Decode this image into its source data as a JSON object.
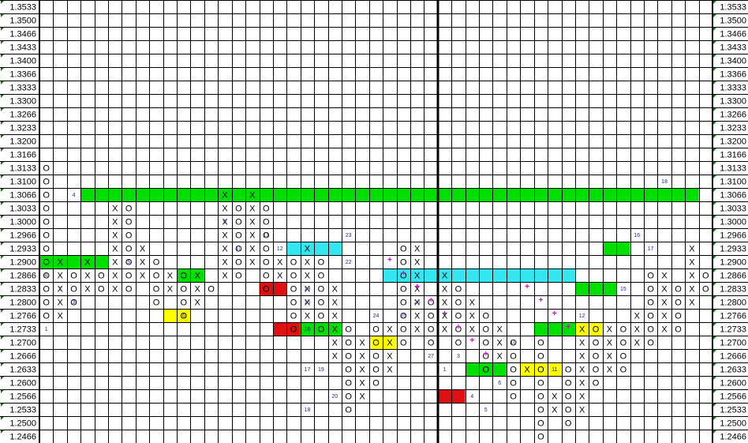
{
  "chart_data": {
    "type": "point-and-figure",
    "y_levels": [
      "1.3533",
      "1.3500",
      "1.3466",
      "1.3433",
      "1.3400",
      "1.3366",
      "1.3333",
      "1.3300",
      "1.3266",
      "1.3233",
      "1.3200",
      "1.3166",
      "1.3133",
      "1.3100",
      "1.3066",
      "1.3033",
      "1.3000",
      "1.2966",
      "1.2933",
      "1.2900",
      "1.2866",
      "1.2833",
      "1.2800",
      "1.2766",
      "1.2733",
      "1.2700",
      "1.2666",
      "1.2633",
      "1.2600",
      "1.2566",
      "1.2533",
      "1.2500",
      "1.2466"
    ],
    "column_count": 49,
    "colors": {
      "green": "#00e000",
      "cyan": "#33e6f0",
      "red": "#e01010",
      "yellow": "#ffff00",
      "grid": "#000000",
      "annot": "#1f2a8c",
      "plus": "#d000d0"
    },
    "highlights": [
      {
        "row": "1.3066",
        "c0": 3,
        "c1": 47,
        "color": "green"
      },
      {
        "row": "1.2933",
        "c0": 18,
        "c1": 21,
        "color": "cyan"
      },
      {
        "row": "1.2900",
        "c0": 0,
        "c1": 4,
        "color": "green"
      },
      {
        "row": "1.2866",
        "c0": 10,
        "c1": 11,
        "color": "green"
      },
      {
        "row": "1.2866",
        "c0": 25,
        "c1": 38,
        "color": "cyan"
      },
      {
        "row": "1.2833",
        "c0": 16,
        "c1": 17,
        "color": "red"
      },
      {
        "row": "1.2766",
        "c0": 9,
        "c1": 10,
        "color": "yellow"
      },
      {
        "row": "1.2733",
        "c0": 17,
        "c1": 18,
        "color": "red"
      },
      {
        "row": "1.2733",
        "c0": 19,
        "c1": 21,
        "color": "green"
      },
      {
        "row": "1.2733",
        "c0": 36,
        "c1": 38,
        "color": "green"
      },
      {
        "row": "1.2733",
        "c0": 39,
        "c1": 40,
        "color": "yellow"
      },
      {
        "row": "1.2700",
        "c0": 24,
        "c1": 25,
        "color": "yellow"
      },
      {
        "row": "1.2633",
        "c0": 31,
        "c1": 33,
        "color": "green"
      },
      {
        "row": "1.2633",
        "c0": 35,
        "c1": 37,
        "color": "yellow"
      },
      {
        "row": "1.2566",
        "c0": 29,
        "c1": 30,
        "color": "red"
      },
      {
        "row": "1.2933",
        "c0": 41,
        "c1": 42,
        "color": "green"
      },
      {
        "row": "1.2833",
        "c0": 39,
        "c1": 41,
        "color": "green"
      }
    ],
    "columns": [
      {
        "col": 0,
        "type": "O",
        "top": "1.3133",
        "bottom": "1.2766"
      },
      {
        "col": 1,
        "type": "X",
        "top": "1.2900",
        "bottom": "1.2766"
      },
      {
        "col": 2,
        "type": "O",
        "top": "1.2866",
        "bottom": "1.2800"
      },
      {
        "col": 3,
        "type": "X",
        "top": "1.2900",
        "bottom": "1.2833"
      },
      {
        "col": 4,
        "type": "O",
        "top": "1.2866",
        "bottom": "1.2833"
      },
      {
        "col": 5,
        "type": "X",
        "top": "1.3033",
        "bottom": "1.2833"
      },
      {
        "col": 6,
        "type": "O",
        "top": "1.3033",
        "bottom": "1.2833"
      },
      {
        "col": 7,
        "type": "X",
        "top": "1.2933",
        "bottom": "1.2866"
      },
      {
        "col": 8,
        "type": "O",
        "top": "1.2900",
        "bottom": "1.2800"
      },
      {
        "col": 9,
        "type": "X",
        "top": "1.2866",
        "bottom": "1.2833"
      },
      {
        "col": 10,
        "type": "O",
        "top": "1.2866",
        "bottom": "1.2766"
      },
      {
        "col": 11,
        "type": "X",
        "top": "1.2866",
        "bottom": "1.2800"
      },
      {
        "col": 12,
        "type": "O",
        "top": "1.2833",
        "bottom": "1.2833"
      },
      {
        "col": 13,
        "type": "X",
        "top": "1.3066",
        "bottom": "1.2866"
      },
      {
        "col": 14,
        "type": "O",
        "top": "1.3033",
        "bottom": "1.2866"
      },
      {
        "col": 15,
        "type": "X",
        "top": "1.3066",
        "bottom": "1.2900"
      },
      {
        "col": 16,
        "type": "O",
        "top": "1.3033",
        "bottom": "1.2833"
      },
      {
        "col": 17,
        "type": "X",
        "top": "1.2900",
        "bottom": "1.2866"
      },
      {
        "col": 18,
        "type": "O",
        "top": "1.2900",
        "bottom": "1.2733"
      },
      {
        "col": 19,
        "type": "X",
        "top": "1.2933",
        "bottom": "1.2766"
      },
      {
        "col": 20,
        "type": "O",
        "top": "1.2900",
        "bottom": "1.2733"
      },
      {
        "col": 21,
        "type": "X",
        "top": "1.2833",
        "bottom": "1.2666"
      },
      {
        "col": 22,
        "type": "O",
        "top": "1.2733",
        "bottom": "1.2533"
      },
      {
        "col": 23,
        "type": "X",
        "top": "1.2700",
        "bottom": "1.2566"
      },
      {
        "col": 24,
        "type": "O",
        "top": "1.2733",
        "bottom": "1.2600"
      },
      {
        "col": 25,
        "type": "X",
        "top": "1.2733",
        "bottom": "1.2633"
      },
      {
        "col": 26,
        "type": "O",
        "top": "1.2933",
        "bottom": "1.2700"
      },
      {
        "col": 27,
        "type": "X",
        "top": "1.2933",
        "bottom": "1.2733"
      },
      {
        "col": 28,
        "type": "O",
        "top": "1.2800",
        "bottom": "1.2700"
      },
      {
        "col": 29,
        "type": "X",
        "top": "1.2866",
        "bottom": "1.2733"
      },
      {
        "col": 30,
        "type": "O",
        "top": "1.2833",
        "bottom": "1.2700"
      },
      {
        "col": 31,
        "type": "X",
        "top": "1.2800",
        "bottom": "1.2733"
      },
      {
        "col": 32,
        "type": "O",
        "top": "1.2766",
        "bottom": "1.2633"
      },
      {
        "col": 33,
        "type": "X",
        "top": "1.2733",
        "bottom": "1.2666"
      },
      {
        "col": 34,
        "type": "O",
        "top": "1.2700",
        "bottom": "1.2566"
      },
      {
        "col": 35,
        "type": "X",
        "top": "1.2633",
        "bottom": "1.2633"
      },
      {
        "col": 36,
        "type": "O",
        "top": "1.2700",
        "bottom": "1.2466"
      },
      {
        "col": 37,
        "type": "X",
        "top": "1.2566",
        "bottom": "1.2533"
      },
      {
        "col": 38,
        "type": "O",
        "top": "1.2633",
        "bottom": "1.2500"
      },
      {
        "col": 39,
        "type": "X",
        "top": "1.2733",
        "bottom": "1.2533"
      },
      {
        "col": 40,
        "type": "O",
        "top": "1.2733",
        "bottom": "1.2600"
      },
      {
        "col": 41,
        "type": "X",
        "top": "1.2733",
        "bottom": "1.2633"
      },
      {
        "col": 42,
        "type": "O",
        "top": "1.2733",
        "bottom": "1.2633"
      },
      {
        "col": 43,
        "type": "X",
        "top": "1.2766",
        "bottom": "1.2700"
      },
      {
        "col": 44,
        "type": "O",
        "top": "1.2866",
        "bottom": "1.2700"
      },
      {
        "col": 45,
        "type": "X",
        "top": "1.2866",
        "bottom": "1.2733"
      },
      {
        "col": 46,
        "type": "O",
        "top": "1.2833",
        "bottom": "1.2733"
      },
      {
        "col": 47,
        "type": "X",
        "top": "1.2933",
        "bottom": "1.2800"
      },
      {
        "col": 48,
        "type": "O",
        "top": "1.2866",
        "bottom": "1.2833"
      }
    ],
    "annotations": [
      {
        "col": 0,
        "row": "1.2866",
        "text": "30"
      },
      {
        "col": 1,
        "row": "1.2833",
        "text": "2"
      },
      {
        "col": 2,
        "row": "1.2800",
        "text": "3"
      },
      {
        "col": 2,
        "row": "1.3066",
        "text": "4"
      },
      {
        "col": 6,
        "row": "1.2900",
        "text": "5"
      },
      {
        "col": 10,
        "row": "1.2766",
        "text": "6"
      },
      {
        "col": 0,
        "row": "1.2733",
        "text": "1"
      },
      {
        "col": 13,
        "row": "1.3000",
        "text": "9"
      },
      {
        "col": 14,
        "row": "1.2933",
        "text": "10"
      },
      {
        "col": 16,
        "row": "1.2966",
        "text": "11"
      },
      {
        "col": 17,
        "row": "1.2933",
        "text": "12"
      },
      {
        "col": 19,
        "row": "1.2833",
        "text": "13"
      },
      {
        "col": 19,
        "row": "1.2800",
        "text": "15"
      },
      {
        "col": 19,
        "row": "1.2733",
        "text": "16"
      },
      {
        "col": 19,
        "row": "1.2633",
        "text": "17"
      },
      {
        "col": 19,
        "row": "1.2533",
        "text": "18"
      },
      {
        "col": 20,
        "row": "1.2633",
        "text": "19"
      },
      {
        "col": 21,
        "row": "1.2566",
        "text": "20"
      },
      {
        "col": 22,
        "row": "1.2900",
        "text": "22"
      },
      {
        "col": 22,
        "row": "1.2966",
        "text": "23"
      },
      {
        "col": 24,
        "row": "1.2766",
        "text": "24"
      },
      {
        "col": 26,
        "row": "1.2766",
        "text": "25"
      },
      {
        "col": 27,
        "row": "1.2800",
        "text": "26"
      },
      {
        "col": 28,
        "row": "1.2666",
        "text": "27"
      },
      {
        "col": 29,
        "row": "1.2633",
        "text": "1"
      },
      {
        "col": 30,
        "row": "1.2666",
        "text": "3"
      },
      {
        "col": 31,
        "row": "1.2566",
        "text": "4"
      },
      {
        "col": 32,
        "row": "1.2533",
        "text": "5"
      },
      {
        "col": 33,
        "row": "1.2600",
        "text": "6"
      },
      {
        "col": 34,
        "row": "1.2700",
        "text": "10"
      },
      {
        "col": 37,
        "row": "1.2633",
        "text": "11"
      },
      {
        "col": 39,
        "row": "1.2766",
        "text": "12"
      },
      {
        "col": 42,
        "row": "1.2833",
        "text": "15"
      },
      {
        "col": 43,
        "row": "1.2966",
        "text": "16"
      },
      {
        "col": 44,
        "row": "1.2933",
        "text": "17"
      },
      {
        "col": 45,
        "row": "1.3100",
        "text": "18"
      }
    ],
    "plus_marks": [
      {
        "col": 25,
        "row": "1.2900"
      },
      {
        "col": 26,
        "row": "1.2866"
      },
      {
        "col": 27,
        "row": "1.2833"
      },
      {
        "col": 28,
        "row": "1.2800"
      },
      {
        "col": 29,
        "row": "1.2766"
      },
      {
        "col": 30,
        "row": "1.2733"
      },
      {
        "col": 31,
        "row": "1.2700"
      },
      {
        "col": 32,
        "row": "1.2666"
      },
      {
        "col": 35,
        "row": "1.2833"
      },
      {
        "col": 36,
        "row": "1.2800"
      },
      {
        "col": 37,
        "row": "1.2766"
      },
      {
        "col": 38,
        "row": "1.2733"
      }
    ],
    "vertical_divider_after_col": 28
  }
}
